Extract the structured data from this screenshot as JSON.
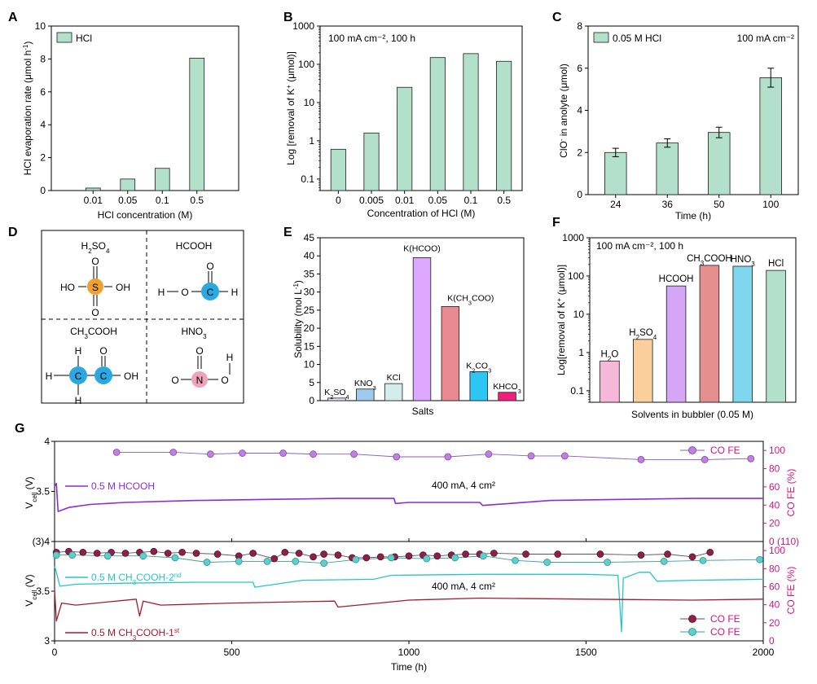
{
  "colors": {
    "bar_green": "#b3e0cb",
    "bar_edge": "#1c1c1c",
    "purple_line": "#8a2be2",
    "cyan_line": "#26c6c6",
    "maroon_line": "#a31c2e",
    "purple_marker": "#c17fe0",
    "maroon_marker": "#8e1f47",
    "cyan_marker": "#5ecfcf",
    "magenta_axis": "#d4147a",
    "h2so4_atom": "#f0a030",
    "c_atom": "#2aa8e0",
    "n_atom": "#f0a3b8"
  },
  "panels": {
    "A": "A",
    "B": "B",
    "C": "C",
    "D": "D",
    "E": "E",
    "F": "F",
    "G": "G"
  },
  "chart_data": [
    {
      "panel": "A",
      "type": "bar",
      "categories": [
        "0.01",
        "0.05",
        "0.1",
        "0.5"
      ],
      "values": [
        0.15,
        0.7,
        1.35,
        8.05
      ],
      "xlabel": "HCl concentration (M)",
      "ylabel_main": "HCl evaporation rate (μmol h",
      "ylabel_sup": "-1",
      "ylabel_end": ")",
      "ylim": [
        0,
        10
      ],
      "yticks": [
        "0",
        "2",
        "4",
        "6",
        "8",
        "10"
      ],
      "legend": "HCl"
    },
    {
      "panel": "B",
      "type": "bar",
      "yscale": "log",
      "categories": [
        "0",
        "0.005",
        "0.01",
        "0.05",
        "0.1",
        "0.5"
      ],
      "values": [
        0.6,
        1.6,
        25,
        150,
        190,
        120
      ],
      "xlabel": "Concentration of HCl (M)",
      "ylabel_main": "Log [removal of K",
      "ylabel_sup": "+",
      "ylabel_end": " (μmol)]",
      "ylim": [
        0.05,
        1000
      ],
      "yticks": [
        "0.1",
        "1",
        "10",
        "100",
        "1000"
      ],
      "annotation": "100 mA cm⁻², 100 h"
    },
    {
      "panel": "C",
      "type": "bar",
      "categories": [
        "24",
        "36",
        "50",
        "100"
      ],
      "values": [
        2.0,
        2.45,
        2.95,
        5.55
      ],
      "errors": [
        0.2,
        0.2,
        0.25,
        0.45
      ],
      "xlabel": "Time (h)",
      "ylabel_main": "ClO",
      "ylabel_sup": "-",
      "ylabel_end": " in anolyte (μmol)",
      "ylim": [
        0,
        8
      ],
      "yticks": [
        "0",
        "2",
        "4",
        "6",
        "8"
      ],
      "legend": "0.05 M HCl",
      "annotation": "100 mA cm⁻²"
    },
    {
      "panel": "E",
      "type": "bar",
      "categories": [
        "K2SO4",
        "KNO3",
        "KCl",
        "K(HCOO)",
        "K(CH3COO)",
        "K2CO3",
        "KHCO3"
      ],
      "values": [
        0.7,
        3.2,
        4.7,
        39.5,
        26.0,
        8.0,
        2.3
      ],
      "bar_colors": [
        "#e3e3ff",
        "#9ccbef",
        "#d3eded",
        "#dda8ff",
        "#e88a8f",
        "#2dc5f4",
        "#f2207c"
      ],
      "xlabel": "Salts",
      "ylabel_main": "Solubility (mol L",
      "ylabel_sup": "-1",
      "ylabel_end": ")",
      "ylim": [
        0,
        45
      ],
      "yticks": [
        "0",
        "5",
        "10",
        "15",
        "20",
        "25",
        "30",
        "35",
        "40",
        "45"
      ]
    },
    {
      "panel": "F",
      "type": "bar",
      "yscale": "log",
      "categories": [
        "H2O",
        "H2SO4",
        "HCOOH",
        "CH3COOH",
        "HNO3",
        "HCl"
      ],
      "values": [
        0.6,
        2.2,
        55,
        190,
        180,
        140
      ],
      "bar_colors": [
        "#f6b8d8",
        "#fbcf9c",
        "#d6a6f6",
        "#e58f8f",
        "#7fd6ef",
        "#b3e0cb"
      ],
      "xlabel": "Solvents in bubbler (0.05 M)",
      "ylabel_main": "Log[removal of K",
      "ylabel_sup": "+",
      "ylabel_end": " (μmol)]",
      "ylim": [
        0.05,
        1000
      ],
      "yticks": [
        "0.1",
        "1",
        "10",
        "100",
        "1000"
      ],
      "annotation": "100 mA cm⁻², 100 h"
    },
    {
      "panel": "G",
      "type": "line",
      "xlabel": "Time (h)",
      "xlim": [
        0,
        2000
      ],
      "xticks": [
        "0",
        "500",
        "1000",
        "1500",
        "2000"
      ],
      "top": {
        "ylim": [
          3,
          4
        ],
        "yticks_left": [
          "(3)4",
          "3.5",
          "4"
        ],
        "ylim_right": [
          0,
          110
        ],
        "yticks_right": [
          "0 (110)",
          "20",
          "40",
          "60",
          "80",
          "100"
        ],
        "annotation": "400 mA, 4 cm²",
        "series_label": "0.5 M HCOOH",
        "legend": "CO FE",
        "vcell_x": [
          0,
          5,
          10,
          40,
          100,
          200,
          400,
          600,
          800,
          958,
          962,
          1000,
          1200,
          1208,
          1400,
          1600,
          1800,
          2000
        ],
        "vcell_y": [
          3.55,
          3.58,
          3.3,
          3.34,
          3.37,
          3.39,
          3.41,
          3.42,
          3.43,
          3.43,
          3.38,
          3.39,
          3.39,
          3.36,
          3.41,
          3.42,
          3.43,
          3.43
        ],
        "fe_x": [
          175,
          335,
          440,
          530,
          645,
          730,
          845,
          965,
          1110,
          1225,
          1345,
          1440,
          1655,
          1835,
          1965
        ],
        "fe_y": [
          98,
          98,
          96,
          97,
          97,
          96,
          96,
          93,
          93,
          96,
          94,
          94,
          90,
          90,
          91
        ]
      },
      "bottom": {
        "ylim": [
          3,
          4
        ],
        "yticks_left": [
          "3",
          "3.5",
          "4"
        ],
        "ylim_right": [
          0,
          110
        ],
        "yticks_right": [
          "0",
          "20",
          "40",
          "60",
          "80",
          "100"
        ],
        "annotation": "400 mA, 4 cm²",
        "series_2nd_label_main": "0.5 M CH",
        "series_2nd_label_sub": "3",
        "series_2nd_label_end": "COOH-2",
        "series_2nd_label_sup": "nd",
        "series_1st_label_main": "0.5 M CH",
        "series_1st_label_sub": "3",
        "series_1st_label_end": "COOH-1",
        "series_1st_label_sup": "st",
        "legend": [
          "CO FE",
          "CO FE"
        ],
        "cyan_x": [
          0,
          6,
          15,
          60,
          200,
          400,
          560,
          565,
          700,
          900,
          950,
          1200,
          1500,
          1590,
          1600,
          1605,
          1650,
          1680,
          1700,
          1800,
          2000
        ],
        "cyan_y": [
          3.75,
          3.68,
          3.55,
          3.57,
          3.58,
          3.59,
          3.59,
          3.54,
          3.61,
          3.62,
          3.66,
          3.67,
          3.67,
          3.66,
          3.09,
          3.63,
          3.69,
          3.69,
          3.6,
          3.61,
          3.62
        ],
        "maroon_x": [
          0,
          5,
          20,
          60,
          230,
          240,
          250,
          300,
          500,
          790,
          800,
          1000,
          1200,
          1500,
          1800,
          2000
        ],
        "maroon_y": [
          3.52,
          3.2,
          3.38,
          3.36,
          3.42,
          3.25,
          3.4,
          3.36,
          3.38,
          3.4,
          3.34,
          3.41,
          3.43,
          3.42,
          3.41,
          3.42
        ],
        "maroon_fe_x": [
          5,
          40,
          80,
          120,
          160,
          200,
          240,
          280,
          320,
          360,
          400,
          460,
          520,
          560,
          620,
          650,
          690,
          730,
          760,
          800,
          840,
          880,
          920,
          960,
          1000,
          1040,
          1080,
          1120,
          1160,
          1200,
          1240,
          1330,
          1420,
          1540,
          1655,
          1730,
          1800,
          1850
        ],
        "maroon_fe_y": [
          98,
          99,
          98,
          97,
          98,
          97,
          98,
          99,
          97,
          98,
          97,
          96,
          94,
          97,
          91,
          98,
          97,
          93,
          96,
          95,
          92,
          92,
          93,
          93,
          94,
          95,
          94,
          95,
          96,
          96,
          97,
          96,
          96,
          96,
          95,
          96,
          93,
          98
        ],
        "cyan_fe_x": [
          5,
          50,
          150,
          250,
          340,
          430,
          520,
          600,
          680,
          760,
          850,
          950,
          1050,
          1130,
          1210,
          1300,
          1390,
          1560,
          1720,
          1830,
          1990
        ],
        "cyan_fe_y": [
          95,
          95,
          94,
          94,
          92,
          87,
          88,
          88,
          88,
          86,
          90,
          92,
          91,
          92,
          94,
          89,
          87,
          87,
          88,
          89,
          90
        ]
      }
    }
  ],
  "molecules": {
    "h2so4_title_main": "H",
    "h2so4_title_sub1": "2",
    "h2so4_title_mid": "SO",
    "h2so4_title_sub2": "4",
    "hcooh_title": "HCOOH",
    "ch3cooh_title_main": "CH",
    "ch3cooh_title_sub": "3",
    "ch3cooh_title_end": "COOH",
    "hno3_title_main": "HNO",
    "hno3_title_sub": "3",
    "atom_S": "S",
    "atom_O": "O",
    "atom_H": "H",
    "atom_C": "C",
    "atom_N": "N",
    "atom_HO": "HO",
    "atom_OH": "OH"
  }
}
